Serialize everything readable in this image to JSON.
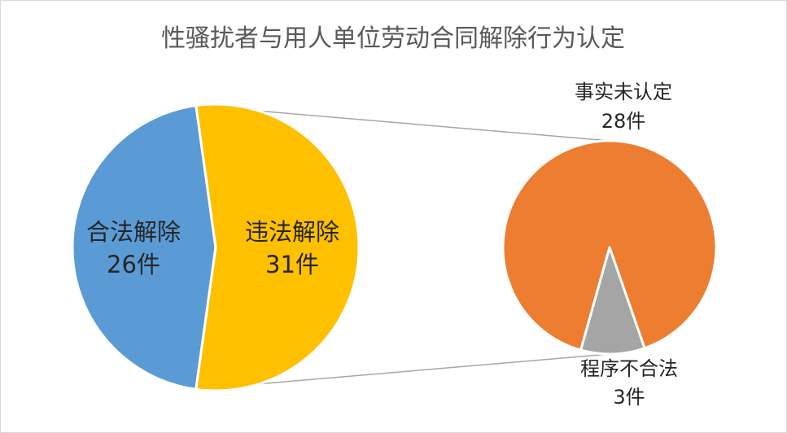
{
  "chart_data": {
    "type": "pie",
    "title": "性骚扰者与用人单位劳动合同解除行为认定",
    "main_pie": {
      "slices": [
        {
          "name": "合法解除",
          "value": 26,
          "value_label": "26件",
          "color": "#5B9BD5"
        },
        {
          "name": "违法解除",
          "value": 31,
          "value_label": "31件",
          "color": "#FFC000"
        }
      ]
    },
    "breakdown_pie": {
      "of": "违法解除",
      "slices": [
        {
          "name": "事实未认定",
          "value": 28,
          "value_label": "28件",
          "color": "#ED7D31"
        },
        {
          "name": "程序不合法",
          "value": 3,
          "value_label": "3件",
          "color": "#A5A5A5"
        }
      ]
    },
    "connector_color": "#A6A6A6"
  }
}
